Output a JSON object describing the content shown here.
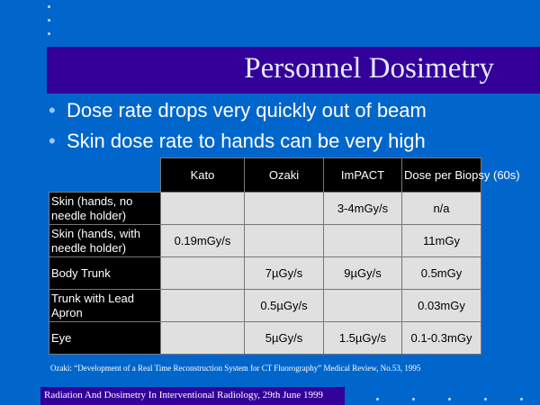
{
  "slide": {
    "title": "Personnel Dosimetry",
    "bullets": [
      "Dose rate drops very quickly out of beam",
      "Skin dose rate to hands can be very high"
    ],
    "bullet_glyph": "•"
  },
  "table": {
    "headers": [
      "Kato",
      "Ozaki",
      "ImPACT",
      "Dose per Biopsy (60s)"
    ],
    "rows": [
      {
        "label": "Skin (hands, no needle holder)",
        "kato": "",
        "ozaki": "",
        "impact": "3-4mGy/s",
        "biopsy": "n/a"
      },
      {
        "label": "Skin (hands, with needle holder)",
        "kato": "0.19mGy/s",
        "ozaki": "",
        "impact": "",
        "biopsy": "11mGy"
      },
      {
        "label": "Body Trunk",
        "kato": "",
        "ozaki": "7µGy/s",
        "impact": "9µGy/s",
        "biopsy": "0.5mGy"
      },
      {
        "label": "Trunk with Lead Apron",
        "kato": "",
        "ozaki": "0.5µGy/s",
        "impact": "",
        "biopsy": "0.03mGy"
      },
      {
        "label": "Eye",
        "kato": "",
        "ozaki": "5µGy/s",
        "impact": "1.5µGy/s",
        "biopsy": "0.1-0.3mGy"
      }
    ]
  },
  "footnote": "Ozaki: “Development of a Real Time Reconstruction System for CT Fluorography” Medical Review, No.53, 1995",
  "footer": "Radiation And Dosimetry In Interventional Radiology, 29th June 1999",
  "colors": {
    "background": "#0066cc",
    "band": "#330099",
    "cell": "#e0e0e0",
    "header": "#000000"
  }
}
